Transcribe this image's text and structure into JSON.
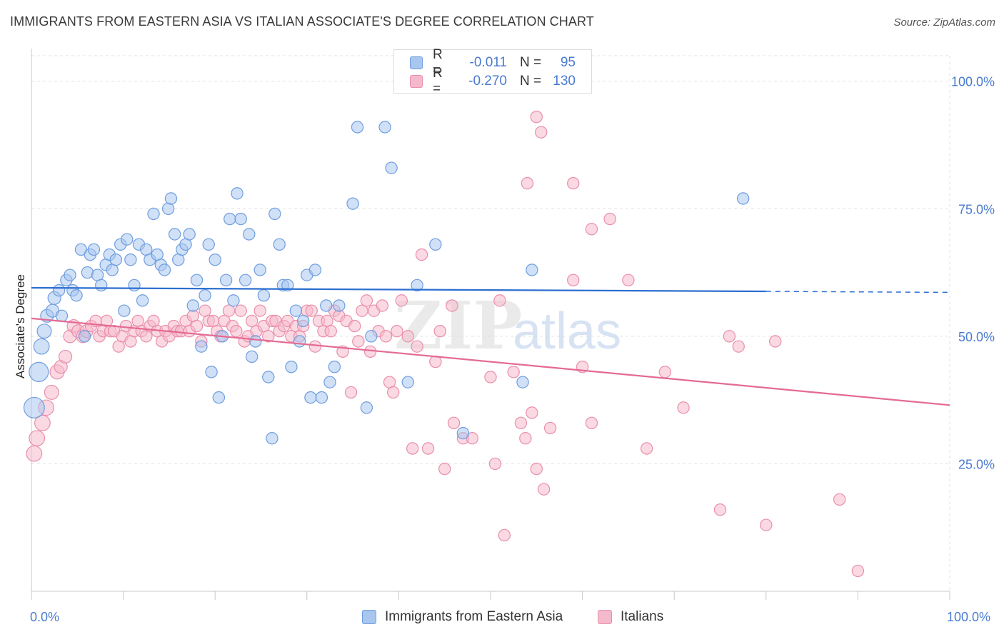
{
  "title": "IMMIGRANTS FROM EASTERN ASIA VS ITALIAN ASSOCIATE'S DEGREE CORRELATION CHART",
  "source": "Source: ZipAtlas.com",
  "watermark": {
    "zip": "ZIP",
    "atlas": "atlas"
  },
  "legend_top": {
    "rows": [
      {
        "r_label": "R =",
        "r_value": "-0.011",
        "n_label": "N =",
        "n_value": "95"
      },
      {
        "r_label": "R =",
        "r_value": "-0.270",
        "n_label": "N =",
        "n_value": "130"
      }
    ]
  },
  "legend_bottom": {
    "items": [
      {
        "label": "Immigrants from Eastern Asia"
      },
      {
        "label": "Italians"
      }
    ]
  },
  "colors": {
    "blue_fill": "#a9c6ee",
    "blue_stroke": "#6f9ee0",
    "blue_line": "#2c6fd1",
    "pink_fill": "#f5b9cc",
    "pink_stroke": "#ea8fab",
    "pink_line": "#e46a93",
    "tick_text": "#4a7bd0",
    "grid": "#e2e2e2"
  },
  "chart_data": {
    "type": "scatter",
    "title": "IMMIGRANTS FROM EASTERN ASIA VS ITALIAN ASSOCIATE'S DEGREE CORRELATION CHART",
    "xlabel": "",
    "ylabel": "Associate's Degree",
    "xlim": [
      0,
      100
    ],
    "ylim": [
      0,
      105
    ],
    "x_tick_labels": [
      "0.0%",
      "100.0%"
    ],
    "y_ticks": [
      25,
      50,
      75,
      100
    ],
    "y_tick_labels": [
      "25.0%",
      "50.0%",
      "75.0%",
      "100.0%"
    ],
    "grid": true,
    "series": [
      {
        "name": "Immigrants from Eastern Asia",
        "r": -0.011,
        "n": 95,
        "trend": {
          "x0": 0,
          "y0": 59.5,
          "x1": 80,
          "y1": 58.8,
          "dashed_to_x": 100,
          "dashed_to_y": 58.6
        },
        "points": [
          [
            0.3,
            36,
            1.6
          ],
          [
            0.8,
            43,
            1.5
          ],
          [
            1.1,
            48,
            1.2
          ],
          [
            1.4,
            51,
            1.1
          ],
          [
            1.7,
            54,
            1
          ],
          [
            2.3,
            55,
            1
          ],
          [
            2.5,
            57.5,
            1
          ],
          [
            3,
            59,
            0.9
          ],
          [
            3.3,
            54,
            0.9
          ],
          [
            3.8,
            61,
            0.9
          ],
          [
            4.2,
            62,
            0.9
          ],
          [
            4.5,
            59,
            0.9
          ],
          [
            4.9,
            58,
            0.9
          ],
          [
            5.4,
            67,
            0.9
          ],
          [
            5.8,
            50,
            0.9
          ],
          [
            6.1,
            62.5,
            0.9
          ],
          [
            6.4,
            66,
            0.9
          ],
          [
            6.8,
            67,
            0.9
          ],
          [
            7.2,
            62,
            0.9
          ],
          [
            7.6,
            60,
            0.9
          ],
          [
            8.1,
            64,
            0.9
          ],
          [
            8.5,
            66,
            0.9
          ],
          [
            8.8,
            63,
            0.9
          ],
          [
            9.2,
            65,
            0.9
          ],
          [
            9.7,
            68,
            0.9
          ],
          [
            10.1,
            55,
            0.9
          ],
          [
            10.4,
            69,
            0.9
          ],
          [
            10.8,
            65,
            0.9
          ],
          [
            11.2,
            60,
            0.9
          ],
          [
            11.7,
            68,
            0.9
          ],
          [
            12.1,
            57,
            0.9
          ],
          [
            12.5,
            67,
            0.9
          ],
          [
            12.9,
            65,
            0.9
          ],
          [
            13.3,
            74,
            0.9
          ],
          [
            13.7,
            66,
            0.9
          ],
          [
            14.1,
            64,
            0.9
          ],
          [
            14.5,
            63,
            0.9
          ],
          [
            14.9,
            75,
            0.9
          ],
          [
            15.2,
            77,
            0.9
          ],
          [
            15.6,
            70,
            0.9
          ],
          [
            16,
            65,
            0.9
          ],
          [
            16.4,
            67,
            0.9
          ],
          [
            16.8,
            68,
            0.9
          ],
          [
            17.2,
            70,
            0.9
          ],
          [
            17.6,
            56,
            0.9
          ],
          [
            18,
            61,
            0.9
          ],
          [
            18.5,
            48,
            0.9
          ],
          [
            18.9,
            58,
            0.9
          ],
          [
            19.3,
            68,
            0.9
          ],
          [
            19.6,
            43,
            0.9
          ],
          [
            20,
            65,
            0.9
          ],
          [
            20.4,
            38,
            0.9
          ],
          [
            20.8,
            50,
            0.9
          ],
          [
            21.2,
            61,
            0.9
          ],
          [
            21.6,
            73,
            0.9
          ],
          [
            22,
            57,
            0.9
          ],
          [
            22.4,
            78,
            0.9
          ],
          [
            22.8,
            73,
            0.9
          ],
          [
            23.3,
            61,
            0.9
          ],
          [
            23.7,
            70,
            0.9
          ],
          [
            24,
            46,
            0.9
          ],
          [
            24.4,
            49,
            0.9
          ],
          [
            24.9,
            63,
            0.9
          ],
          [
            25.3,
            58,
            0.9
          ],
          [
            25.8,
            42,
            0.9
          ],
          [
            26.2,
            30,
            0.9
          ],
          [
            26.5,
            74,
            0.9
          ],
          [
            27,
            68,
            0.9
          ],
          [
            27.4,
            60,
            0.9
          ],
          [
            27.9,
            60,
            0.9
          ],
          [
            28.3,
            44,
            0.9
          ],
          [
            28.8,
            55,
            0.9
          ],
          [
            29.2,
            49,
            0.9
          ],
          [
            29.6,
            53,
            0.9
          ],
          [
            30,
            62,
            0.9
          ],
          [
            30.4,
            38,
            0.9
          ],
          [
            30.9,
            63,
            0.9
          ],
          [
            31.6,
            38,
            0.9
          ],
          [
            32.1,
            56,
            0.9
          ],
          [
            32.5,
            41,
            0.9
          ],
          [
            33,
            44,
            0.9
          ],
          [
            33.5,
            56,
            0.9
          ],
          [
            35,
            76,
            0.9
          ],
          [
            35.5,
            91,
            0.9
          ],
          [
            36.5,
            36,
            0.9
          ],
          [
            37,
            50,
            0.9
          ],
          [
            38.5,
            91,
            0.9
          ],
          [
            39.2,
            83,
            0.9
          ],
          [
            41,
            41,
            0.9
          ],
          [
            42,
            60,
            0.9
          ],
          [
            44,
            68,
            0.9
          ],
          [
            47,
            31,
            0.9
          ],
          [
            53.5,
            41,
            0.9
          ],
          [
            54.5,
            63,
            0.9
          ],
          [
            77.5,
            77,
            0.9
          ]
        ]
      },
      {
        "name": "Italians",
        "r": -0.27,
        "n": 130,
        "trend": {
          "x0": 0,
          "y0": 53.5,
          "x1": 100,
          "y1": 36.5
        },
        "points": [
          [
            0.3,
            27,
            1.2
          ],
          [
            0.6,
            30,
            1.2
          ],
          [
            1.2,
            33,
            1.2
          ],
          [
            1.6,
            36,
            1.2
          ],
          [
            2.2,
            39,
            1.1
          ],
          [
            2.8,
            43,
            1.1
          ],
          [
            3.2,
            44,
            1
          ],
          [
            3.7,
            46,
            1
          ],
          [
            4.2,
            50,
            1
          ],
          [
            4.6,
            52,
            1
          ],
          [
            5.1,
            51,
            1
          ],
          [
            5.6,
            50,
            1
          ],
          [
            6,
            51,
            1
          ],
          [
            6.5,
            52,
            0.9
          ],
          [
            7,
            53,
            0.9
          ],
          [
            7.4,
            50,
            0.9
          ],
          [
            7.8,
            51,
            0.9
          ],
          [
            8.2,
            53,
            0.9
          ],
          [
            8.6,
            51,
            0.9
          ],
          [
            9,
            51,
            0.9
          ],
          [
            9.5,
            48,
            0.9
          ],
          [
            9.9,
            50,
            0.9
          ],
          [
            10.3,
            52,
            0.9
          ],
          [
            10.8,
            49,
            0.9
          ],
          [
            11.2,
            51,
            0.9
          ],
          [
            11.6,
            53,
            0.9
          ],
          [
            12,
            51,
            0.9
          ],
          [
            12.5,
            50,
            0.9
          ],
          [
            12.9,
            52,
            0.9
          ],
          [
            13.3,
            53,
            0.9
          ],
          [
            13.7,
            51,
            0.9
          ],
          [
            14.2,
            49,
            0.9
          ],
          [
            14.6,
            51,
            0.9
          ],
          [
            15,
            50,
            0.9
          ],
          [
            15.5,
            52,
            0.9
          ],
          [
            15.9,
            51,
            0.9
          ],
          [
            16.3,
            51,
            0.9
          ],
          [
            16.8,
            53,
            0.9
          ],
          [
            17.2,
            51,
            0.9
          ],
          [
            17.6,
            54,
            0.9
          ],
          [
            18,
            52,
            0.9
          ],
          [
            18.5,
            49,
            0.9
          ],
          [
            18.9,
            55,
            0.9
          ],
          [
            19.3,
            53,
            0.9
          ],
          [
            19.8,
            53,
            0.9
          ],
          [
            20.2,
            51,
            0.9
          ],
          [
            20.6,
            50,
            0.9
          ],
          [
            21,
            53,
            0.9
          ],
          [
            21.5,
            55,
            0.9
          ],
          [
            21.9,
            52,
            0.9
          ],
          [
            22.3,
            51,
            0.9
          ],
          [
            22.8,
            55,
            0.9
          ],
          [
            23.2,
            49,
            0.9
          ],
          [
            23.6,
            50,
            0.9
          ],
          [
            24,
            53,
            0.9
          ],
          [
            24.5,
            51,
            0.9
          ],
          [
            24.9,
            55,
            0.9
          ],
          [
            25.3,
            52,
            0.9
          ],
          [
            25.8,
            50,
            0.9
          ],
          [
            26.2,
            53,
            0.9
          ],
          [
            26.6,
            53,
            0.9
          ],
          [
            27,
            51,
            0.9
          ],
          [
            27.5,
            52,
            0.9
          ],
          [
            27.9,
            53,
            0.9
          ],
          [
            28.3,
            50,
            0.9
          ],
          [
            28.8,
            52,
            0.9
          ],
          [
            29.2,
            50,
            0.9
          ],
          [
            29.6,
            52,
            0.9
          ],
          [
            30,
            55,
            0.9
          ],
          [
            30.5,
            55,
            0.9
          ],
          [
            30.9,
            48,
            0.9
          ],
          [
            31.3,
            53,
            0.9
          ],
          [
            31.8,
            51,
            0.9
          ],
          [
            32.2,
            53,
            0.9
          ],
          [
            32.6,
            51,
            0.9
          ],
          [
            33,
            55,
            0.9
          ],
          [
            33.5,
            54,
            0.9
          ],
          [
            33.9,
            47,
            0.9
          ],
          [
            34.3,
            53,
            0.9
          ],
          [
            34.8,
            39,
            0.9
          ],
          [
            35.2,
            52,
            0.9
          ],
          [
            35.6,
            49,
            0.9
          ],
          [
            36,
            55,
            0.9
          ],
          [
            36.5,
            57,
            0.9
          ],
          [
            36.9,
            47,
            0.9
          ],
          [
            37.3,
            55,
            0.9
          ],
          [
            37.8,
            51,
            0.9
          ],
          [
            38.2,
            56,
            0.9
          ],
          [
            38.6,
            50,
            0.9
          ],
          [
            39,
            41,
            0.9
          ],
          [
            39.4,
            39,
            0.9
          ],
          [
            39.8,
            51,
            0.9
          ],
          [
            40.3,
            57,
            0.9
          ],
          [
            41,
            50,
            0.9
          ],
          [
            41.5,
            28,
            0.9
          ],
          [
            42,
            48,
            0.9
          ],
          [
            42.5,
            66,
            0.9
          ],
          [
            43.2,
            28,
            0.9
          ],
          [
            44,
            45,
            0.9
          ],
          [
            44.5,
            51,
            0.9
          ],
          [
            45,
            24,
            0.9
          ],
          [
            45.8,
            56,
            0.9
          ],
          [
            46,
            33,
            0.9
          ],
          [
            47,
            30,
            0.9
          ],
          [
            48,
            30,
            0.9
          ],
          [
            50,
            42,
            0.9
          ],
          [
            50.5,
            25,
            0.9
          ],
          [
            51,
            57,
            0.9
          ],
          [
            51.5,
            11,
            0.9
          ],
          [
            52.5,
            43,
            0.9
          ],
          [
            53.3,
            33,
            0.9
          ],
          [
            53.8,
            30,
            0.9
          ],
          [
            54.5,
            35,
            0.9
          ],
          [
            55,
            24,
            0.9
          ],
          [
            55.8,
            20,
            0.9
          ],
          [
            56.5,
            32,
            0.9
          ],
          [
            59,
            61,
            0.9
          ],
          [
            60,
            44,
            0.9
          ],
          [
            61,
            33,
            0.9
          ],
          [
            63,
            73,
            0.9
          ],
          [
            67,
            28,
            0.9
          ],
          [
            69,
            43,
            0.9
          ],
          [
            71,
            36,
            0.9
          ],
          [
            75,
            16,
            0.9
          ],
          [
            76,
            50,
            0.9
          ],
          [
            77,
            48,
            0.9
          ],
          [
            80,
            13,
            0.9
          ],
          [
            81,
            49,
            0.9
          ],
          [
            88,
            18,
            0.9
          ],
          [
            90,
            4,
            0.9
          ]
        ]
      }
    ],
    "extra_pink_points": [
      [
        54,
        80
      ],
      [
        55,
        93
      ],
      [
        55.5,
        90
      ],
      [
        59,
        80
      ],
      [
        61,
        71
      ],
      [
        65,
        61
      ]
    ]
  }
}
